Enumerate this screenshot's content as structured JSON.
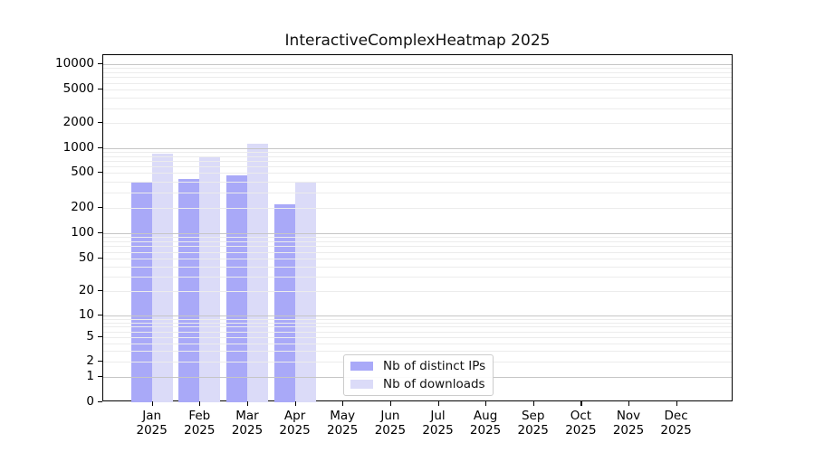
{
  "chart_data": {
    "type": "bar",
    "title": "InteractiveComplexHeatmap 2025",
    "categories": [
      "Jan 2025",
      "Feb 2025",
      "Mar 2025",
      "Apr 2025",
      "May 2025",
      "Jun 2025",
      "Jul 2025",
      "Aug 2025",
      "Sep 2025",
      "Oct 2025",
      "Nov 2025",
      "Dec 2025"
    ],
    "series": [
      {
        "name": "Nb of distinct IPs",
        "color": "#a9a9f8",
        "values": [
          390,
          420,
          470,
          220,
          null,
          null,
          null,
          null,
          null,
          null,
          null,
          null
        ]
      },
      {
        "name": "Nb of downloads",
        "color": "#dbdbf8",
        "values": [
          850,
          780,
          1120,
          400,
          null,
          null,
          null,
          null,
          null,
          null,
          null,
          null
        ]
      }
    ],
    "y_axis": {
      "scale": "log-with-zero",
      "ticks": [
        0,
        1,
        2,
        5,
        10,
        20,
        50,
        100,
        200,
        500,
        1000,
        2000,
        5000,
        10000
      ],
      "major_gridline_values": [
        1,
        10,
        100,
        1000,
        10000
      ],
      "ylim": [
        0,
        10000
      ]
    },
    "grid": {
      "horizontal_only": true,
      "major_color": "#c6c6c6",
      "minor_color": "#ececec",
      "drawn_above_bars": true
    },
    "legend": {
      "position": "lower-center",
      "border_color": "#cccccc"
    },
    "background_color": "#ffffff"
  }
}
